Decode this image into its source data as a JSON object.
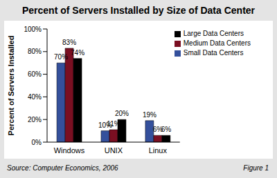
{
  "chart_data": {
    "type": "bar",
    "title": "Percent of Servers Installed by Size of Data Center",
    "y_label": "Percent of Servers Installed",
    "categories": [
      "Windows",
      "UNIX",
      "Linux"
    ],
    "series": [
      {
        "name": "Small Data Centers",
        "color": "#34509c",
        "values": [
          70,
          10,
          19
        ],
        "value_labels": [
          "70%",
          "10%",
          "19%"
        ]
      },
      {
        "name": "Medium Data Centers",
        "color": "#7a0f22",
        "values": [
          83,
          11,
          6
        ],
        "value_labels": [
          "83%",
          "11%",
          "6%"
        ]
      },
      {
        "name": "Large Data Centers",
        "color": "#000000",
        "values": [
          74,
          20,
          6
        ],
        "value_labels": [
          "74%",
          "20%",
          "6%"
        ]
      }
    ],
    "ylim": [
      0,
      100
    ],
    "yticks": [
      {
        "value": 0,
        "label": "0%"
      },
      {
        "value": 20,
        "label": "20%"
      },
      {
        "value": 40,
        "label": "40%"
      },
      {
        "value": 60,
        "label": "60%"
      },
      {
        "value": 80,
        "label": "80%"
      },
      {
        "value": 100,
        "label": "100%"
      }
    ],
    "grid": false,
    "legend": "upper right",
    "data_labels": true,
    "annotations": [
      "Source: Computer Economics, 2006",
      "Figure 1"
    ]
  }
}
